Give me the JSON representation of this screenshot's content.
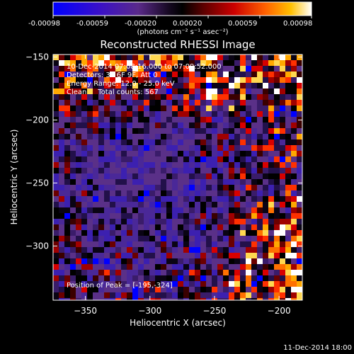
{
  "colorbar": {
    "ticks": [
      "-0.00098",
      "-0.00059",
      "-0.00020",
      "0.00020",
      "0.00059",
      "0.00098"
    ],
    "units_label": "(photons cm⁻² s⁻¹ asec⁻²)",
    "range": [
      -0.00098,
      0.00098
    ]
  },
  "chart_data": {
    "type": "heatmap",
    "title": "Reconstructed RHESSI Image",
    "xlabel": "Heliocentric X (arcsec)",
    "ylabel": "Heliocentric Y (arcsec)",
    "xlim": [
      -375,
      -182
    ],
    "ylim": [
      -343,
      -148
    ],
    "x_ticks": [
      -350,
      -300,
      -250,
      -200
    ],
    "y_ticks": [
      -150,
      -200,
      -250,
      -300
    ],
    "x_tick_labels": [
      "−350",
      "−300",
      "−250",
      "−200"
    ],
    "y_tick_labels": [
      "−150",
      "−200",
      "−250",
      "−300"
    ],
    "annotations": [
      "10-Dec-2014 07:08:16.000 to 07:09:52.000",
      "Detectors: 3F 6F 9F, Att 0",
      "Energy Range: 12.0 - 25.0 keV",
      "Clean     Total counts: 567"
    ],
    "peak_label": "Position of Peak = [-195,-324]",
    "peak": [
      -195,
      -324
    ],
    "grid": false
  },
  "footer_timestamp": "11-Dec-2014 18:00"
}
